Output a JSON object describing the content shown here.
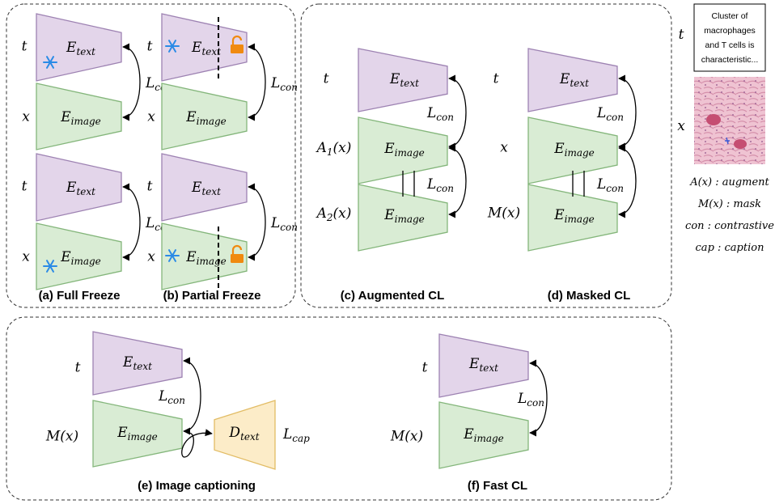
{
  "symbols": {
    "text_encoder": {
      "base": "E",
      "sub": "text"
    },
    "image_encoder": {
      "base": "E",
      "sub": "image"
    },
    "text_decoder": {
      "base": "D",
      "sub": "text"
    },
    "contrastive_loss": {
      "base": "L",
      "sub": "con"
    },
    "caption_loss": {
      "base": "L",
      "sub": "cap"
    },
    "text_input": "t",
    "image_input": "x",
    "augment_1": {
      "base": "A",
      "sub": "1",
      "arg": "(x)"
    },
    "augment_2": {
      "base": "A",
      "sub": "2",
      "arg": "(x)"
    },
    "masked": "M(x)"
  },
  "captions": [
    "(a) Full Freeze",
    "(b) Partial Freeze",
    "(c) Augmented CL",
    "(d) Masked CL",
    "(e) Image captioning",
    "(f) Fast CL"
  ],
  "legend": {
    "caption_box_lines": [
      "Cluster of",
      "macrophages",
      "and T cells is",
      "characteristic..."
    ],
    "text_input": "t",
    "image_input": "x",
    "definitions": [
      "A(x) : augment",
      "M(x) : mask",
      "con : contrastive",
      "cap : caption"
    ]
  }
}
